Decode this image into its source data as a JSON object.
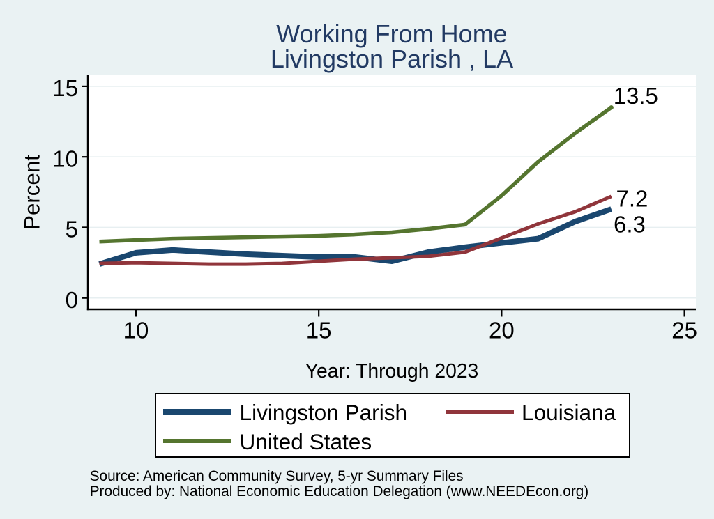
{
  "page": {
    "background_color": "#eaf2f3",
    "plot_background_color": "#ffffff",
    "gridline_color": "#e7eff1",
    "axis_color": "#000000",
    "title_color": "#223a63"
  },
  "chart_data": {
    "type": "line",
    "title_line1": "Working From Home",
    "title_line2": "Livingston Parish , LA",
    "xlabel": "Year: Through 2023",
    "ylabel": "Percent",
    "x": [
      9,
      10,
      11,
      12,
      13,
      14,
      15,
      16,
      17,
      18,
      19,
      20,
      21,
      22,
      23
    ],
    "series": [
      {
        "name": "Livingston Parish",
        "color": "#1a476f",
        "line_width": 8,
        "values": [
          2.4,
          3.2,
          3.4,
          3.25,
          3.1,
          3.0,
          2.9,
          2.9,
          2.6,
          3.25,
          3.6,
          3.9,
          4.2,
          5.4,
          6.3
        ],
        "end_label": "6.3",
        "end_label_offset": [
          3.3,
          33.2
        ],
        "end_marker": false
      },
      {
        "name": "Louisiana",
        "color": "#90353b",
        "line_width": 5,
        "values": [
          2.45,
          2.5,
          2.45,
          2.4,
          2.4,
          2.45,
          2.6,
          2.75,
          2.85,
          2.95,
          3.25,
          4.25,
          5.25,
          6.1,
          7.2
        ],
        "end_label": "7.2",
        "end_label_offset": [
          6.8,
          14.5
        ],
        "end_marker": false
      },
      {
        "name": "United States",
        "color": "#55752f",
        "line_width": 5.5,
        "values": [
          4.0,
          4.1,
          4.2,
          4.25,
          4.3,
          4.35,
          4.4,
          4.5,
          4.65,
          4.9,
          5.2,
          7.25,
          9.65,
          11.65,
          13.5
        ],
        "end_label": "13.5",
        "end_label_offset": [
          3.0,
          -5.4
        ],
        "end_marker": true
      }
    ],
    "x_ticks": [
      10,
      15,
      20,
      25
    ],
    "y_ticks": [
      0,
      5,
      10,
      15
    ],
    "xlim": [
      8.685,
      25.313
    ],
    "ylim": [
      -0.805,
      15.835
    ],
    "grid": true,
    "legend_position": "bottom"
  },
  "footer": {
    "line1": "Source: American Community Survey, 5-yr Summary Files",
    "line2": "Produced by: National Economic Education Delegation (www.NEEDEcon.org)"
  }
}
